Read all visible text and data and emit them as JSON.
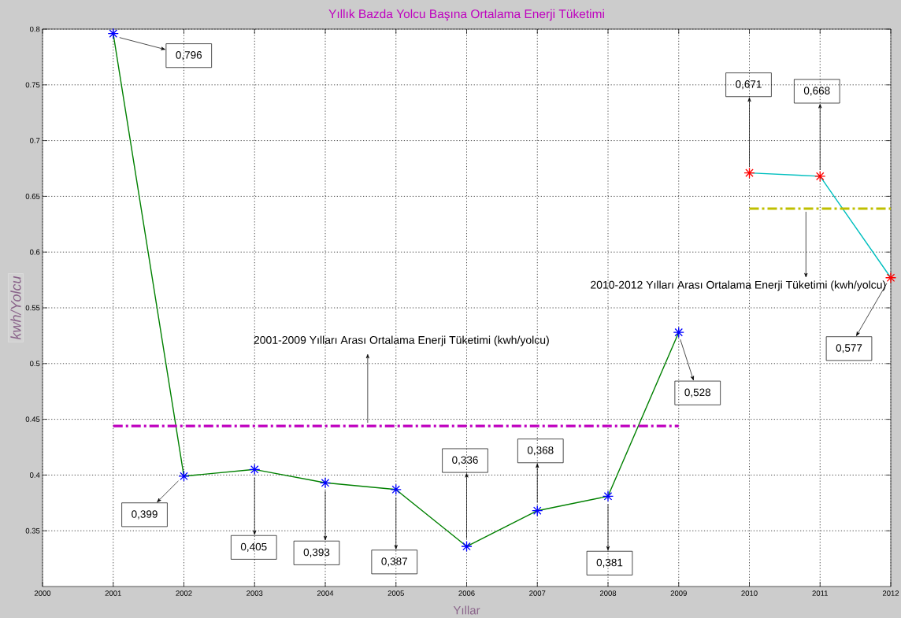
{
  "chart_data": {
    "type": "line",
    "title": "Yıllık Bazda Yolcu Başına Ortalama Enerji Tüketimi",
    "xlabel": "Yıllar",
    "ylabel": "kwh/Yolcu",
    "xlim": [
      2000,
      2012
    ],
    "xticks": [
      2000,
      2001,
      2002,
      2003,
      2004,
      2005,
      2006,
      2007,
      2008,
      2009,
      2010,
      2011,
      2012
    ],
    "ylim": [
      0.3,
      0.8
    ],
    "yticks": [
      0.35,
      0.4,
      0.45,
      0.5,
      0.55,
      0.6,
      0.65,
      0.7,
      0.75,
      0.8
    ],
    "grid": true,
    "marker": "cross",
    "series": [
      {
        "x": [
          2001,
          2002,
          2003,
          2004,
          2005,
          2006,
          2007,
          2008,
          2009
        ],
        "values": [
          0.796,
          0.399,
          0.405,
          0.393,
          0.387,
          0.336,
          0.368,
          0.381,
          0.528
        ],
        "color": "#008000",
        "colors": [
          "#0000ff",
          "#0000ff",
          "#0000ff",
          "#0000ff",
          "#0000ff",
          "#0000ff",
          "#0000ff",
          "#0000ff",
          "#0000ff"
        ],
        "value_labels": [
          "0,796",
          "0,399",
          "0,405",
          "0,393",
          "0,387",
          "0,336",
          "0,368",
          "0,381",
          "0,528"
        ]
      },
      {
        "x": [
          2010,
          2011,
          2012
        ],
        "values": [
          0.671,
          0.668,
          0.577
        ],
        "color": "#00bfbf",
        "colors": [
          "#ff0000",
          "#ff0000",
          "#ff0000"
        ],
        "value_labels": [
          "0,671",
          "0,668",
          "0,577"
        ]
      },
      {
        "x": [
          2001,
          2009
        ],
        "values": [
          0.444,
          0.444
        ],
        "color": "#bf00bf",
        "marker": "none",
        "line_style": "dashdot"
      },
      {
        "x": [
          2010,
          2012
        ],
        "values": [
          0.639,
          0.639
        ],
        "color": "#bfbf00",
        "marker": "none",
        "line_style": "dashdot"
      }
    ],
    "annotations": [
      {
        "text": "2001-2009 Yılları Arası Ortalama Enerji Tüketimi (kwh/yolcu)",
        "x": 2004.6,
        "y": 0.444
      },
      {
        "text": "2010-2012 Yılları Arası Ortalama Enerji Tüketimi (kwh/yolcu)",
        "x": 2010.8,
        "y": 0.639
      }
    ]
  }
}
